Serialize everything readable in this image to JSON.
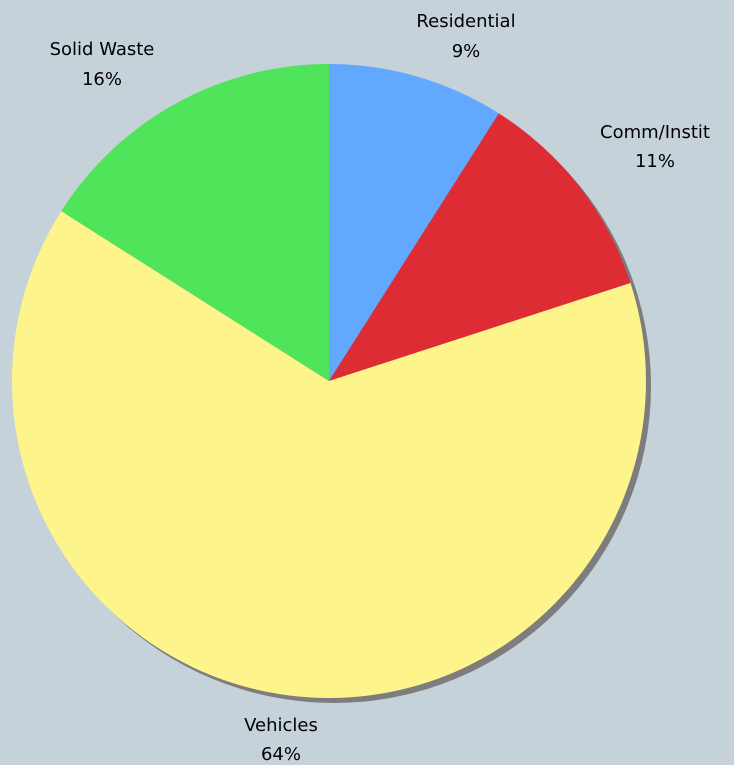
{
  "chart_data": {
    "type": "pie",
    "slices": [
      {
        "label": "Residential",
        "percent_label": "9%",
        "value": 9,
        "color": "#62a8ff"
      },
      {
        "label": "Comm/Instit",
        "percent_label": "11%",
        "value": 11,
        "color": "#de2c35"
      },
      {
        "label": "Vehicles",
        "percent_label": "64%",
        "value": 64,
        "color": "#fef48c"
      },
      {
        "label": "Solid Waste",
        "percent_label": "16%",
        "value": 16,
        "color": "#50e45a"
      }
    ],
    "start_angle": "12 o'clock",
    "direction": "clockwise",
    "shadow": true,
    "background_color": "#c6d2da"
  }
}
